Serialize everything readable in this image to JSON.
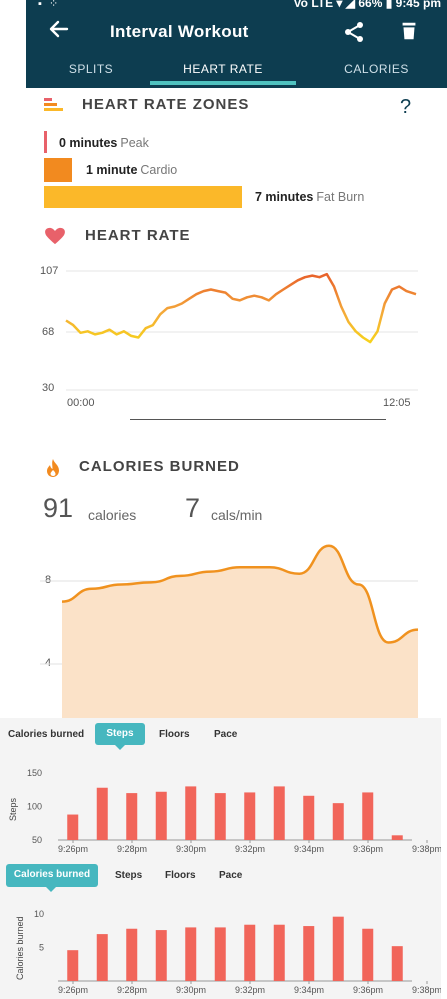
{
  "status_bar": {
    "right_text": "Vo LTE ▾ ◢ 66% ▮ 9:45 pm"
  },
  "app_bar": {
    "title": "Interval Workout"
  },
  "tabs": [
    {
      "label": "SPLITS"
    },
    {
      "label": "HEART RATE",
      "active": true
    },
    {
      "label": "CALORIES"
    }
  ],
  "zones": {
    "title": "HEART RATE ZONES",
    "help": "?",
    "items": [
      {
        "value": "0 minutes",
        "name": "Peak",
        "color": "#e8616a",
        "minutes": 0
      },
      {
        "value": "1 minute",
        "name": "Cardio",
        "color": "#f28a1f",
        "minutes": 1
      },
      {
        "value": "7 minutes",
        "name": "Fat Burn",
        "color": "#fbb829",
        "minutes": 7
      }
    ]
  },
  "heart_rate": {
    "title": "HEART RATE",
    "y_ticks": [
      "107",
      "68",
      "30"
    ],
    "x_start": "00:00",
    "x_end": "12:05"
  },
  "calories": {
    "title": "CALORIES BURNED",
    "total_value": "91",
    "total_unit": "calories",
    "rate_value": "7",
    "rate_unit": "cals/min",
    "y_ticks": [
      "8",
      "4"
    ]
  },
  "steps_panel": {
    "chips": [
      "Calories burned",
      "Steps",
      "Floors",
      "Pace"
    ],
    "active": "Steps",
    "ylabel": "Steps"
  },
  "cal_panel": {
    "chips": [
      "Calories burned",
      "Steps",
      "Floors",
      "Pace"
    ],
    "active": "Calories burned",
    "ylabel": "Calories burned"
  },
  "chart_data": [
    {
      "type": "line",
      "title": "HEART RATE",
      "ylim": [
        30,
        107
      ],
      "y_ticks": [
        30,
        68,
        107
      ],
      "x_ticks": [
        "00:00",
        "12:05"
      ],
      "x": [
        0.0,
        0.25,
        0.5,
        0.75,
        1.0,
        1.25,
        1.5,
        1.75,
        2.0,
        2.25,
        2.5,
        2.75,
        3.0,
        3.25,
        3.5,
        3.75,
        4.0,
        4.25,
        4.5,
        4.75,
        5.0,
        5.25,
        5.5,
        5.75,
        6.0,
        6.25,
        6.5,
        6.75,
        7.0,
        7.25,
        7.5,
        7.75,
        8.0,
        8.25,
        8.5,
        8.75,
        9.0,
        9.25,
        9.5,
        9.75,
        10.0,
        10.25,
        10.5,
        10.75,
        11.0,
        11.25,
        11.5,
        11.75,
        12.08
      ],
      "values": [
        75,
        72,
        67,
        68,
        66,
        67,
        69,
        66,
        68,
        65,
        64,
        70,
        72,
        79,
        83,
        84,
        86,
        89,
        92,
        94,
        95,
        94,
        93,
        89,
        88,
        90,
        91,
        90,
        88,
        92,
        95,
        98,
        101,
        103,
        104,
        103,
        105,
        97,
        84,
        74,
        68,
        64,
        61,
        68,
        86,
        95,
        97,
        94,
        92
      ]
    },
    {
      "type": "area",
      "title": "CALORIES BURNED",
      "y_ticks": [
        4,
        8
      ],
      "ylim": [
        1.3,
        10.7
      ],
      "x": [
        0,
        1,
        2,
        3,
        4,
        5,
        6,
        7,
        8,
        9,
        10,
        11,
        12
      ],
      "values": [
        6.9,
        7.5,
        7.7,
        7.8,
        8.1,
        8.3,
        8.5,
        8.5,
        8.2,
        9.5,
        7.7,
        5.0,
        5.6
      ]
    },
    {
      "type": "bar",
      "ylabel": "Steps",
      "ylim": [
        50,
        150
      ],
      "y_ticks": [
        50,
        100,
        150
      ],
      "x_ticks": [
        "9:26pm",
        "9:28pm",
        "9:30pm",
        "9:32pm",
        "9:34pm",
        "9:36pm",
        "9:38pm"
      ],
      "values": [
        88,
        128,
        120,
        122,
        130,
        120,
        121,
        130,
        116,
        105,
        121,
        57
      ]
    },
    {
      "type": "bar",
      "ylabel": "Calories burned",
      "ylim": [
        0,
        10
      ],
      "y_ticks": [
        5,
        10
      ],
      "x_ticks": [
        "9:26pm",
        "9:28pm",
        "9:30pm",
        "9:32pm",
        "9:34pm",
        "9:36pm",
        "9:38pm"
      ],
      "values": [
        4.6,
        7.0,
        7.8,
        7.6,
        8.0,
        8.0,
        8.4,
        8.4,
        8.2,
        9.6,
        7.8,
        5.2
      ]
    }
  ]
}
